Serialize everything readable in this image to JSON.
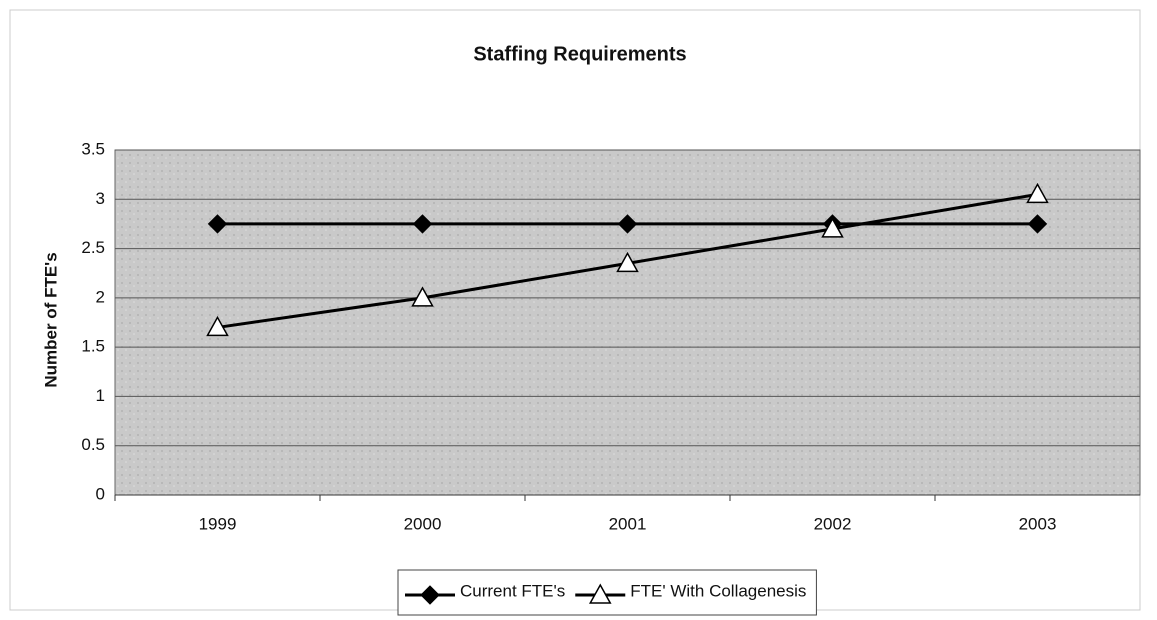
{
  "chart_data": {
    "type": "line",
    "title": "Staffing Requirements",
    "y_label": "Number of FTE's",
    "categories": [
      "1999",
      "2000",
      "2001",
      "2002",
      "2003"
    ],
    "series": [
      {
        "name": "Current FTE's",
        "color": "#000000",
        "marker": "diamond",
        "values": [
          2.75,
          2.75,
          2.75,
          2.75,
          2.75
        ]
      },
      {
        "name": "FTE' With Collagenesis",
        "color": "#000000",
        "marker": "triangle",
        "values": [
          1.7,
          2.0,
          2.35,
          2.7,
          3.05
        ]
      }
    ],
    "ylim": [
      0,
      3.5
    ],
    "yticks": [
      0,
      0.5,
      1,
      1.5,
      2,
      2.5,
      3,
      3.5
    ],
    "grid": true,
    "legend": "bottom"
  }
}
